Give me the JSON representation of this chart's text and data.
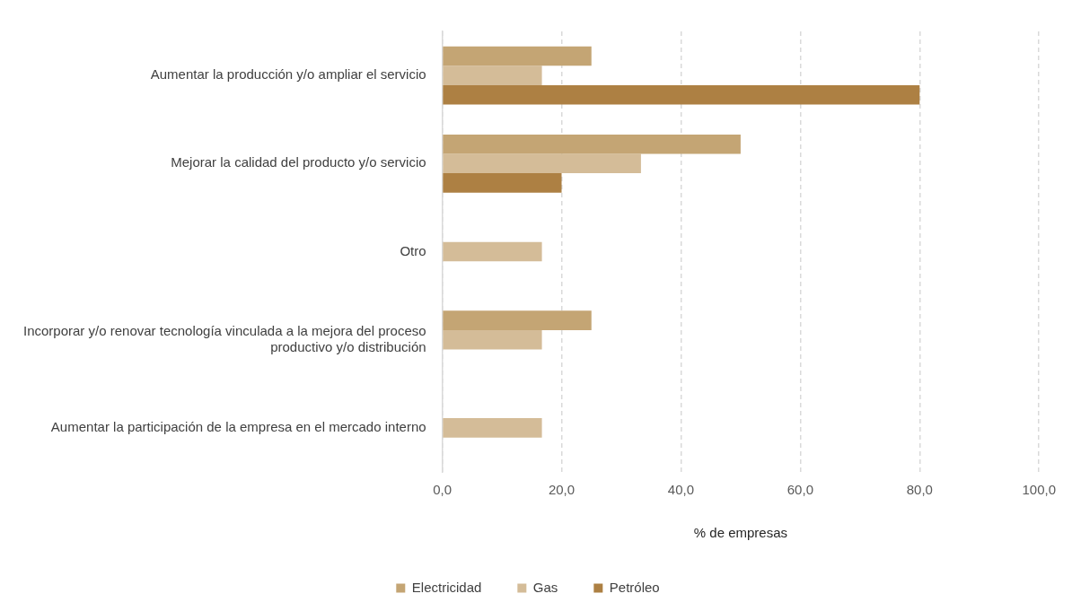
{
  "chart_data": {
    "type": "bar",
    "orientation": "horizontal",
    "xlabel": "% de empresas",
    "categories": [
      "Aumentar la producción y/o ampliar el servicio",
      "Mejorar la calidad del producto y/o servicio",
      "Otro",
      "Incorporar y/o renovar tecnología vinculada a la mejora del proceso productivo y/o distribución",
      "Aumentar la participación de la empresa en el mercado interno"
    ],
    "series": [
      {
        "name": "Electricidad",
        "color": "#c4a574",
        "values": [
          25,
          50,
          null,
          25,
          null
        ]
      },
      {
        "name": "Gas",
        "color": "#d4bc98",
        "values": [
          16.7,
          33.3,
          16.7,
          16.7,
          16.7
        ]
      },
      {
        "name": "Petróleo",
        "color": "#ad8043",
        "values": [
          80,
          20,
          null,
          null,
          null
        ]
      }
    ],
    "xlim": [
      0,
      100
    ],
    "xticks": [
      {
        "value": 0,
        "label": "0,0"
      },
      {
        "value": 20,
        "label": "20,0"
      },
      {
        "value": 40,
        "label": "40,0"
      },
      {
        "value": 60,
        "label": "60,0"
      },
      {
        "value": 80,
        "label": "80,0"
      },
      {
        "value": 100,
        "label": "100,0"
      }
    ],
    "grid": "x",
    "line_style": "dashed",
    "legend": "bottom"
  }
}
